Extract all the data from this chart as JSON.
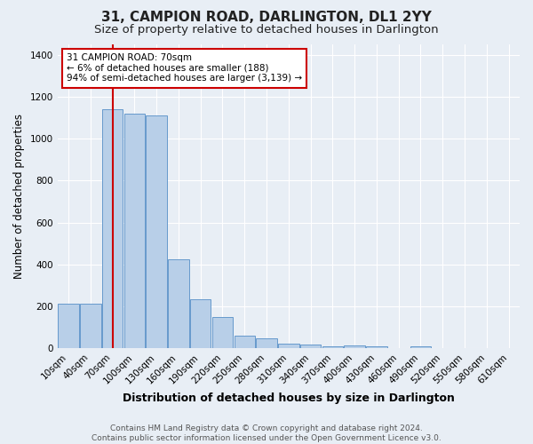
{
  "title": "31, CAMPION ROAD, DARLINGTON, DL1 2YY",
  "subtitle": "Size of property relative to detached houses in Darlington",
  "xlabel": "Distribution of detached houses by size in Darlington",
  "ylabel": "Number of detached properties",
  "footnote1": "Contains HM Land Registry data © Crown copyright and database right 2024.",
  "footnote2": "Contains public sector information licensed under the Open Government Licence v3.0.",
  "categories": [
    "10sqm",
    "40sqm",
    "70sqm",
    "100sqm",
    "130sqm",
    "160sqm",
    "190sqm",
    "220sqm",
    "250sqm",
    "280sqm",
    "310sqm",
    "340sqm",
    "370sqm",
    "400sqm",
    "430sqm",
    "460sqm",
    "490sqm",
    "520sqm",
    "550sqm",
    "580sqm",
    "610sqm"
  ],
  "values": [
    210,
    210,
    1140,
    1120,
    1110,
    425,
    235,
    148,
    60,
    45,
    22,
    18,
    10,
    12,
    10,
    2,
    10,
    0,
    0,
    0,
    0
  ],
  "bar_color": "#b8cfe8",
  "bar_edge_color": "#6699cc",
  "vline_color": "#cc0000",
  "annotation_box_bg": "#ffffff",
  "annotation_box_edge": "#cc0000",
  "annotation_lines": [
    "31 CAMPION ROAD: 70sqm",
    "← 6% of detached houses are smaller (188)",
    "94% of semi-detached houses are larger (3,139) →"
  ],
  "bg_color": "#e8eef5",
  "plot_bg_color": "#e8eef5",
  "ylim": [
    0,
    1450
  ],
  "yticks": [
    0,
    200,
    400,
    600,
    800,
    1000,
    1200,
    1400
  ],
  "title_fontsize": 11,
  "subtitle_fontsize": 9.5,
  "xlabel_fontsize": 9,
  "ylabel_fontsize": 8.5,
  "tick_fontsize": 7.5,
  "annot_fontsize": 7.5,
  "footnote_fontsize": 6.5
}
